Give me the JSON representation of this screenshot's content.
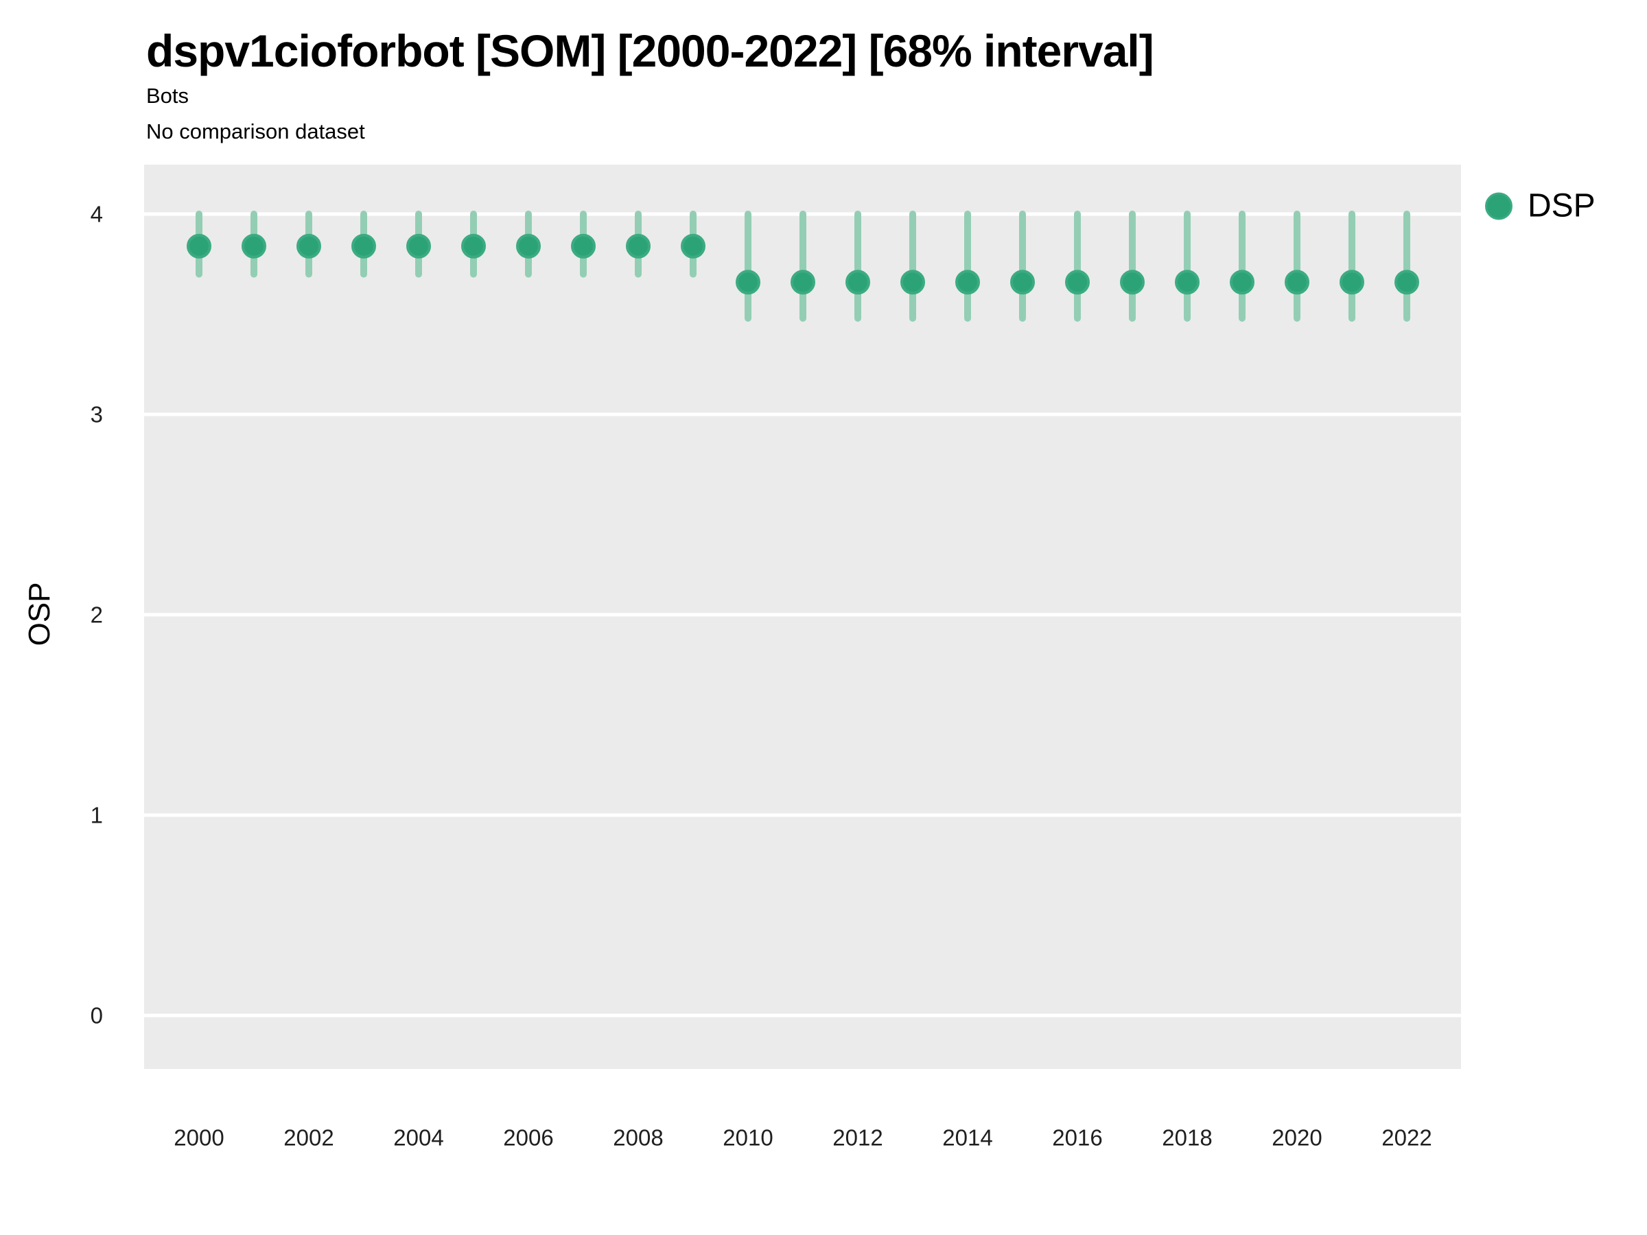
{
  "header": {
    "title": "dspv1cioforbot [SOM] [2000-2022] [68% interval]",
    "subtitle1": "Bots",
    "subtitle2": "No comparison dataset"
  },
  "legend": {
    "label": "DSP",
    "position": "right"
  },
  "axes": {
    "y_title": "OSP",
    "y_tick_labels": [
      "0",
      "1",
      "2",
      "3",
      "4"
    ],
    "x_tick_labels": [
      "2000",
      "2002",
      "2004",
      "2006",
      "2008",
      "2010",
      "2012",
      "2014",
      "2016",
      "2018",
      "2020",
      "2022"
    ]
  },
  "colors": {
    "point_fill": "#2ba377",
    "point_ring": "#3cab82",
    "interval_bar": "#93ceb4",
    "panel_background": "#ebebeb",
    "gridline": "#ffffff",
    "text": "#000000",
    "tick_text": "#1f1f1f"
  },
  "chart_data": {
    "type": "scatter",
    "title": "dspv1cioforbot [SOM] [2000-2022] [68% interval]",
    "subtitle": [
      "Bots",
      "No comparison dataset"
    ],
    "xlabel": "",
    "ylabel": "OSP",
    "interval_label": "68% interval",
    "legend_position": "right",
    "grid": "major-horizontal-only",
    "ylim": [
      -0.25,
      4.25
    ],
    "y_ticks": [
      0,
      1,
      2,
      3,
      4
    ],
    "x_ticks": [
      2000,
      2002,
      2004,
      2006,
      2008,
      2010,
      2012,
      2014,
      2016,
      2018,
      2020,
      2022
    ],
    "x": [
      2000,
      2001,
      2002,
      2003,
      2004,
      2005,
      2006,
      2007,
      2008,
      2009,
      2010,
      2011,
      2012,
      2013,
      2014,
      2015,
      2016,
      2017,
      2018,
      2019,
      2020,
      2021,
      2022
    ],
    "series": [
      {
        "name": "DSP",
        "values": [
          3.84,
          3.84,
          3.84,
          3.84,
          3.84,
          3.84,
          3.84,
          3.84,
          3.84,
          3.84,
          3.66,
          3.66,
          3.66,
          3.66,
          3.66,
          3.66,
          3.66,
          3.66,
          3.66,
          3.66,
          3.66,
          3.66,
          3.66
        ],
        "lower": [
          3.7,
          3.7,
          3.7,
          3.7,
          3.7,
          3.7,
          3.7,
          3.7,
          3.7,
          3.7,
          3.48,
          3.48,
          3.48,
          3.48,
          3.48,
          3.48,
          3.48,
          3.48,
          3.48,
          3.48,
          3.48,
          3.48,
          3.48
        ],
        "upper": [
          4.0,
          4.0,
          4.0,
          4.0,
          4.0,
          4.0,
          4.0,
          4.0,
          4.0,
          4.0,
          4.0,
          4.0,
          4.0,
          4.0,
          4.0,
          4.0,
          4.0,
          4.0,
          4.0,
          4.0,
          4.0,
          4.0,
          4.0
        ]
      }
    ]
  }
}
